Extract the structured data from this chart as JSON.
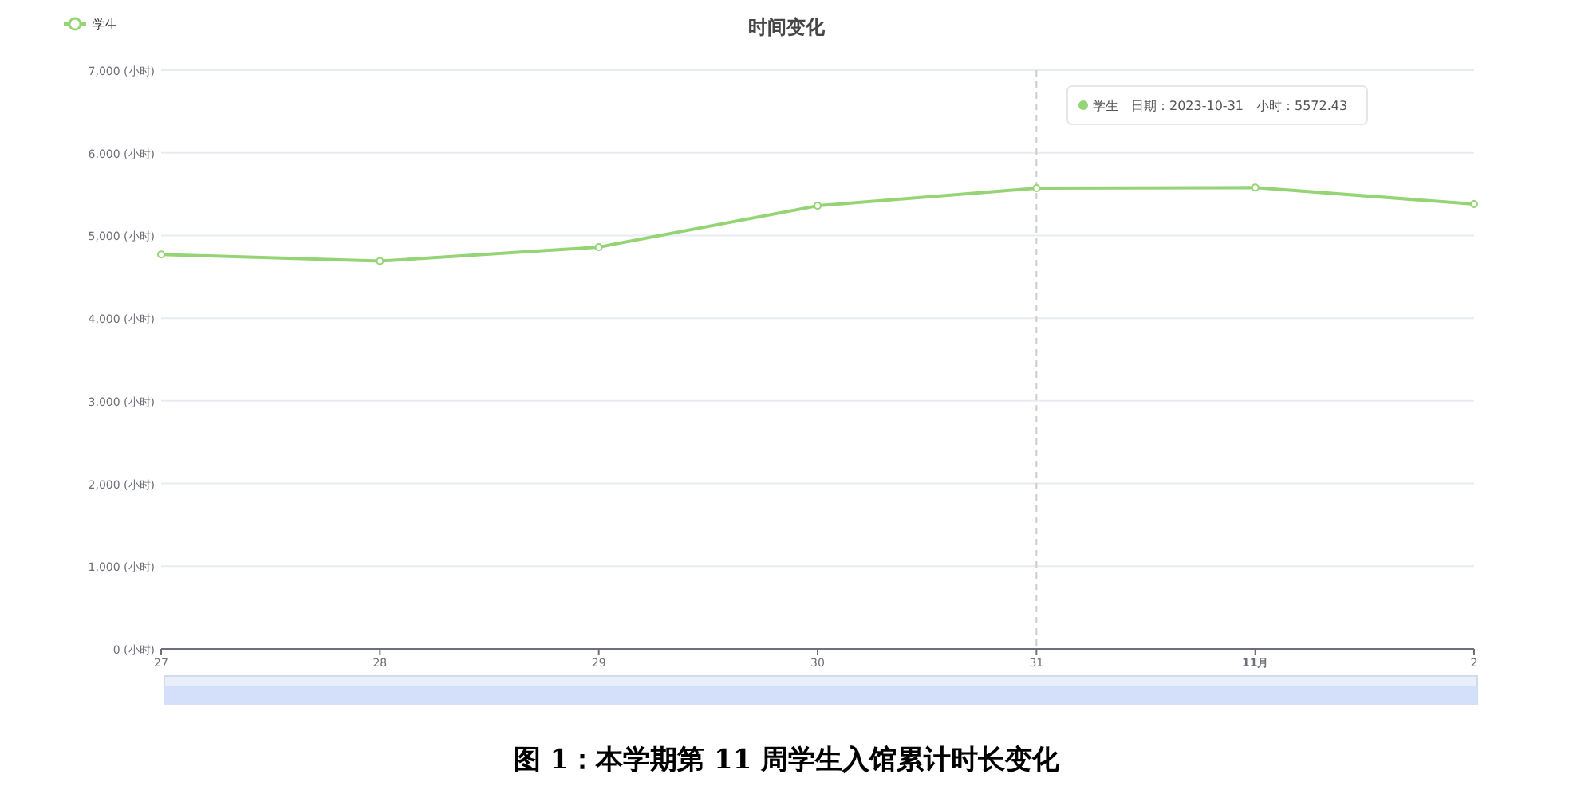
{
  "chart_data": {
    "type": "line",
    "title": "时间变化",
    "x": [
      "2023-10-27",
      "2023-10-28",
      "2023-10-29",
      "2023-10-30",
      "2023-10-31",
      "2023-11-01",
      "2023-11-02"
    ],
    "series": [
      {
        "name": "学生",
        "color": "#95d475",
        "values": [
          4770,
          4690,
          4860,
          5360,
          5572.43,
          5580,
          5380
        ]
      }
    ],
    "xlim": [
      "2023-10-27",
      "2023-11-02"
    ],
    "xticks": [
      {
        "value": "2023-10-27",
        "label": "27"
      },
      {
        "value": "2023-10-28",
        "label": "28"
      },
      {
        "value": "2023-10-29",
        "label": "29"
      },
      {
        "value": "2023-10-30",
        "label": "30"
      },
      {
        "value": "2023-10-31",
        "label": "31"
      },
      {
        "value": "2023-11-01",
        "label": "11月"
      },
      {
        "value": "2023-11-02",
        "label": "2"
      }
    ],
    "ylim": [
      0,
      7000
    ],
    "yticks": [
      {
        "value": 0,
        "label": "0 (小时)"
      },
      {
        "value": 1000,
        "label": "1,000 (小时)"
      },
      {
        "value": 2000,
        "label": "2,000 (小时)"
      },
      {
        "value": 3000,
        "label": "3,000 (小时)"
      },
      {
        "value": 4000,
        "label": "4,000 (小时)"
      },
      {
        "value": 5000,
        "label": "5,000 (小时)"
      },
      {
        "value": 6000,
        "label": "6,000 (小时)"
      },
      {
        "value": 7000,
        "label": "7,000 (小时)"
      }
    ],
    "ref_lines": [
      {
        "axis": "x",
        "value": "2023-10-31",
        "color": "#cccccc",
        "line_style": "dashed"
      }
    ],
    "annotations": [
      "学生　日期：2023-10-31　小时：5572.43",
      "图 1：本学期第 11 周学生入馆累计时长变化"
    ],
    "grid": "y",
    "legend": "top left",
    "marker": "circle",
    "line_style": "solid"
  }
}
